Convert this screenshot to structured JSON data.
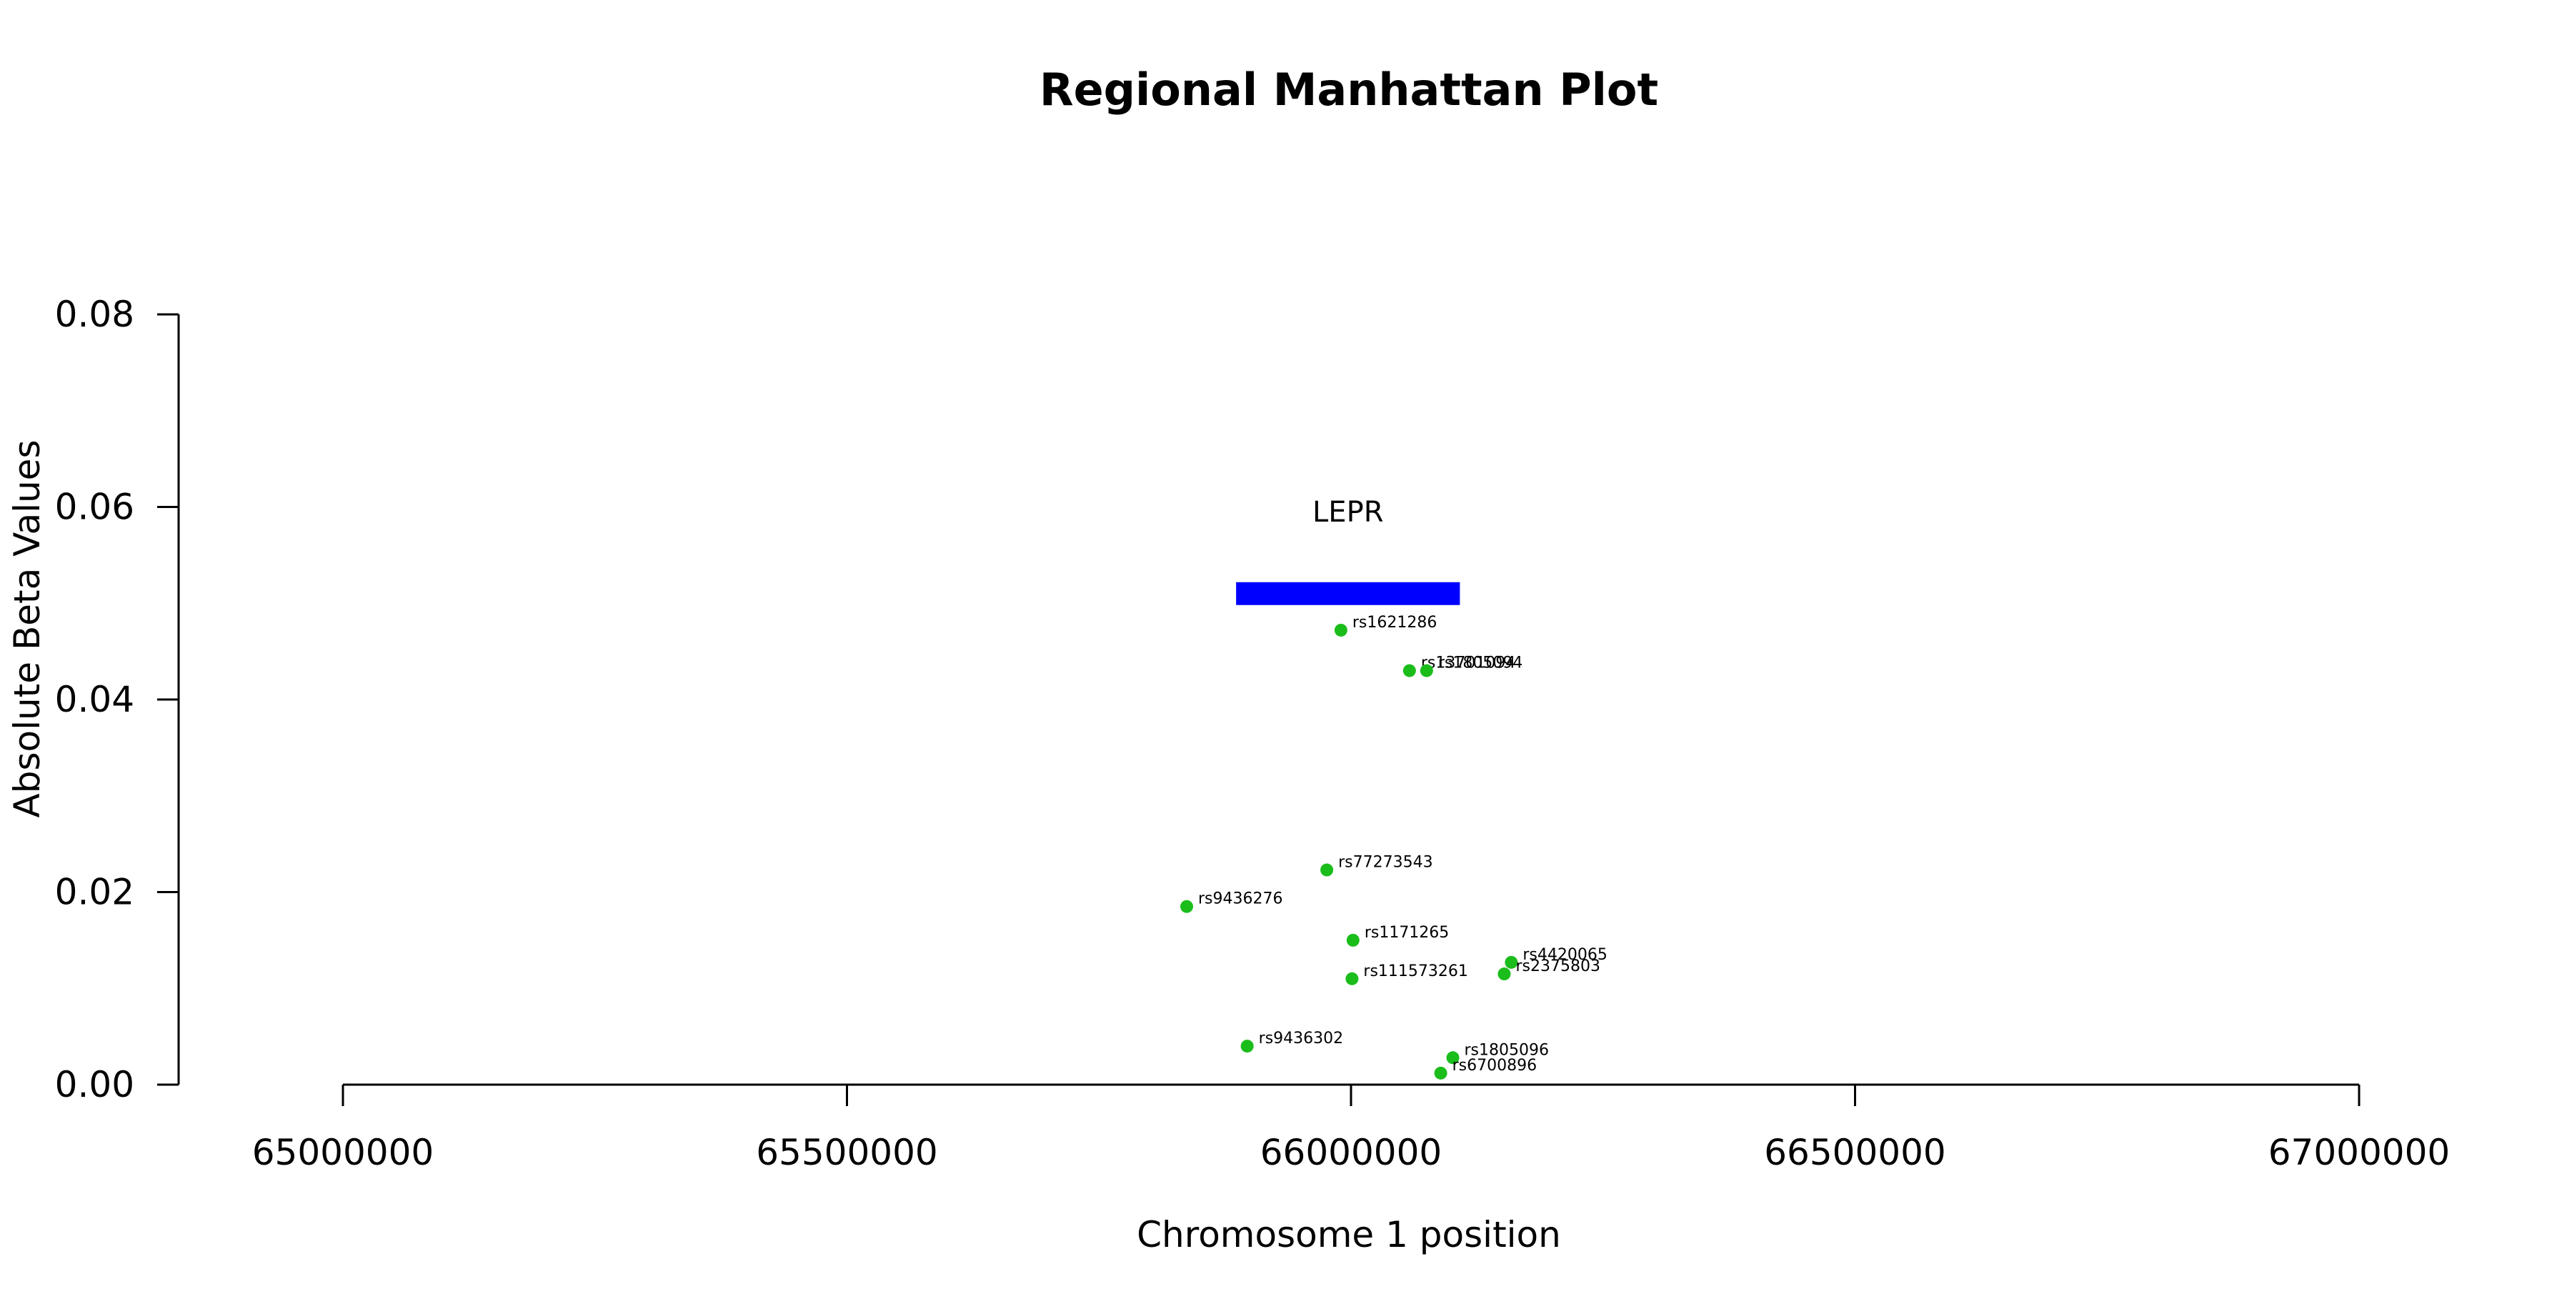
{
  "chart_data": {
    "type": "scatter",
    "title": "Regional Manhattan Plot",
    "xlabel": "Chromosome 1 position",
    "ylabel": "Absolute Beta Values",
    "xlim": [
      65000000,
      67000000
    ],
    "ylim": [
      0,
      0.08
    ],
    "x_ticks": [
      65000000,
      65500000,
      66000000,
      66500000,
      67000000
    ],
    "y_ticks": [
      0.0,
      0.02,
      0.04,
      0.06,
      0.08
    ],
    "y_tick_labels": [
      "0.00",
      "0.02",
      "0.04",
      "0.06",
      "0.08"
    ],
    "grid": false,
    "point_color": "#1bbd1b",
    "gene": {
      "name": "LEPR",
      "start": 65886000,
      "end": 66108000,
      "y": 0.051,
      "color": "#0000ff"
    },
    "points": [
      {
        "label": "rs1621286",
        "x": 65990000,
        "y": 0.0472
      },
      {
        "label": "rs13701094",
        "x": 66058000,
        "y": 0.043
      },
      {
        "label": "rs1805094",
        "x": 66075000,
        "y": 0.043
      },
      {
        "label": "rs77273543",
        "x": 65976000,
        "y": 0.0223
      },
      {
        "label": "rs9436276",
        "x": 65837000,
        "y": 0.0185
      },
      {
        "label": "rs1171265",
        "x": 66002000,
        "y": 0.015
      },
      {
        "label": "rs111573261",
        "x": 66001000,
        "y": 0.011
      },
      {
        "label": "rs4420065",
        "x": 66159000,
        "y": 0.0127
      },
      {
        "label": "rs2375803",
        "x": 66152000,
        "y": 0.0115
      },
      {
        "label": "rs9436302",
        "x": 65897000,
        "y": 0.004
      },
      {
        "label": "rs1805096",
        "x": 66101000,
        "y": 0.0028
      },
      {
        "label": "rs6700896",
        "x": 66089000,
        "y": 0.0012
      }
    ]
  }
}
